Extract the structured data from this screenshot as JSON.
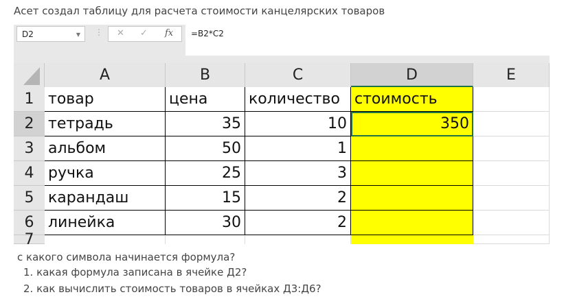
{
  "title": "Асет создал таблицу для расчета стоимости канцелярских товаров",
  "formula_bar": {
    "name_box": "D2",
    "cancel_icon": "✕",
    "enter_icon": "✓",
    "fx_label": "fx",
    "formula": "=B2*C2"
  },
  "columns": [
    "A",
    "B",
    "C",
    "D",
    "E"
  ],
  "rows": [
    {
      "n": "1",
      "cells": [
        "товар",
        "цена",
        "количество",
        "стоимость",
        ""
      ]
    },
    {
      "n": "2",
      "cells": [
        "тетрадь",
        "35",
        "10",
        "350",
        ""
      ]
    },
    {
      "n": "3",
      "cells": [
        "альбом",
        "50",
        "1",
        "",
        ""
      ]
    },
    {
      "n": "4",
      "cells": [
        "ручка",
        "25",
        "3",
        "",
        ""
      ]
    },
    {
      "n": "5",
      "cells": [
        "карандаш",
        "15",
        "2",
        "",
        ""
      ]
    },
    {
      "n": "6",
      "cells": [
        "линейка",
        "30",
        "2",
        "",
        ""
      ]
    },
    {
      "n": "7",
      "cells": [
        "",
        "",
        "",
        "",
        ""
      ]
    }
  ],
  "highlight_color": "#ffff00",
  "questions": [
    "с какого символа начинается формула?",
    "1. какая формула записана в ячейке Д2?",
    "2. как вычислить стоимость товаров в ячейках Д3:Д6?"
  ]
}
